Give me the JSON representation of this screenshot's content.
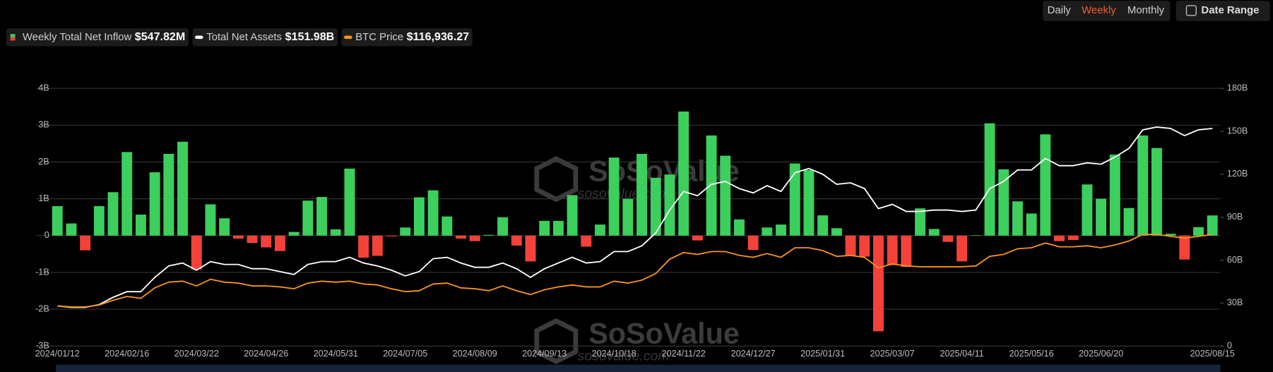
{
  "controls": {
    "periods": [
      "Daily",
      "Weekly",
      "Monthly"
    ],
    "active": 1,
    "date_range": "Date Range"
  },
  "watermark": {
    "brand": "SoSoValue",
    "url": "sosovalue.com"
  },
  "chart_data": {
    "type": "bar-line",
    "categories": [
      "2024/01/12",
      null,
      null,
      null,
      null,
      "2024/02/16",
      null,
      null,
      null,
      null,
      "2024/03/22",
      null,
      null,
      null,
      null,
      "2024/04/26",
      null,
      null,
      null,
      null,
      "2024/05/31",
      null,
      null,
      null,
      null,
      "2024/07/05",
      null,
      null,
      null,
      null,
      "2024/08/09",
      null,
      null,
      null,
      null,
      "2024/09/13",
      null,
      null,
      null,
      null,
      "2024/10/18",
      null,
      null,
      null,
      null,
      "2024/11/22",
      null,
      null,
      null,
      null,
      "2024/12/27",
      null,
      null,
      null,
      null,
      "2025/01/31",
      null,
      null,
      null,
      null,
      "2025/03/07",
      null,
      null,
      null,
      null,
      "2025/04/11",
      null,
      null,
      null,
      null,
      "2025/05/16",
      null,
      null,
      null,
      null,
      "2025/06/20",
      null,
      null,
      null,
      null,
      null,
      null,
      null,
      "2025/08/15"
    ],
    "series": [
      {
        "name": "Weekly Total Net Inflow",
        "latest_label": "$547.82M",
        "kind": "bar",
        "axis": "y",
        "color": "#3ccf5c",
        "negative_color": "#f4423a",
        "values": [
          0.8,
          0.33,
          -0.4,
          0.8,
          1.18,
          2.27,
          0.57,
          1.72,
          2.22,
          2.55,
          -0.92,
          0.85,
          0.47,
          -0.08,
          -0.2,
          -0.32,
          -0.42,
          0.1,
          0.95,
          1.05,
          0.17,
          1.82,
          -0.6,
          -0.55,
          -0.02,
          0.22,
          1.04,
          1.23,
          0.52,
          -0.08,
          -0.15,
          0.02,
          0.5,
          -0.27,
          -0.7,
          0.4,
          0.4,
          1.1,
          -0.3,
          0.3,
          2.12,
          1.0,
          2.22,
          1.57,
          1.66,
          3.37,
          -0.13,
          2.72,
          2.17,
          0.44,
          -0.39,
          0.22,
          0.3,
          1.96,
          1.78,
          0.55,
          0.2,
          -0.55,
          -0.57,
          -2.6,
          -0.8,
          -0.85,
          0.74,
          0.18,
          -0.17,
          -0.7,
          0.01,
          3.05,
          1.8,
          0.93,
          0.6,
          2.75,
          -0.15,
          -0.12,
          1.39,
          1.0,
          2.2,
          0.75,
          2.72,
          2.38,
          0.05,
          -0.65,
          0.23,
          0.54782
        ]
      },
      {
        "name": "Total Net Assets",
        "latest_label": "$151.98B",
        "kind": "line",
        "axis": "y2",
        "color": "#ffffff",
        "values": [
          28,
          27,
          27,
          29,
          34,
          38,
          38,
          48,
          56,
          58,
          53,
          59,
          57,
          57,
          54,
          54,
          52,
          50,
          57,
          59,
          59,
          62,
          58,
          56,
          53,
          49,
          52,
          61,
          62,
          58,
          55,
          55,
          58,
          54,
          48,
          54,
          58,
          62,
          58,
          59,
          66,
          66,
          70,
          79,
          95,
          108,
          105,
          113,
          115,
          110,
          107,
          112,
          108,
          121,
          124,
          120,
          113,
          114,
          110,
          96,
          99,
          94,
          94,
          95,
          95,
          94,
          95,
          110,
          115,
          123,
          123,
          131,
          126,
          126,
          128,
          127,
          132,
          138,
          151,
          153,
          152,
          147,
          151,
          151.98
        ]
      },
      {
        "name": "BTC Price",
        "latest_label": "$116,936.27",
        "kind": "line",
        "axis": "y3",
        "color": "#f7931a",
        "values": [
          42000,
          41000,
          41000,
          43000,
          48000,
          52000,
          50000,
          61000,
          67000,
          68000,
          63000,
          70000,
          67000,
          66000,
          63000,
          63000,
          62000,
          60000,
          66000,
          68000,
          67000,
          68000,
          65000,
          64000,
          60000,
          57000,
          58000,
          65000,
          66000,
          61000,
          60000,
          58000,
          63000,
          58000,
          54000,
          59000,
          62000,
          64000,
          62000,
          62000,
          68000,
          66000,
          69000,
          76000,
          91000,
          98000,
          96000,
          99000,
          99000,
          95000,
          93000,
          97000,
          93000,
          103000,
          103000,
          100000,
          94000,
          95000,
          93000,
          82000,
          86000,
          84000,
          83000,
          83000,
          83000,
          83000,
          84000,
          94000,
          96000,
          102000,
          103000,
          108000,
          104000,
          104000,
          105000,
          103000,
          106000,
          110000,
          117000,
          117000,
          115000,
          113000,
          115000,
          116936.27
        ]
      }
    ],
    "ylim": [
      -3,
      4
    ],
    "yticks": [
      {
        "value": -3,
        "label": "-3B"
      },
      {
        "value": -2,
        "label": "-2B"
      },
      {
        "value": -1,
        "label": "-1B"
      },
      0,
      {
        "value": 1,
        "label": "1B"
      },
      {
        "value": 2,
        "label": "2B"
      },
      {
        "value": 3,
        "label": "3B"
      },
      {
        "value": 4,
        "label": "4B"
      }
    ],
    "y2lim": [
      0,
      180
    ],
    "y2ticks": [
      0,
      {
        "value": 30,
        "label": "30B"
      },
      {
        "value": 60,
        "label": "60B"
      },
      {
        "value": 90,
        "label": "90B"
      },
      {
        "value": 120,
        "label": "120B"
      },
      {
        "value": 150,
        "label": "150B"
      },
      {
        "value": 180,
        "label": "180B"
      }
    ],
    "y3lim": [
      0,
      270000
    ],
    "grid": true
  }
}
